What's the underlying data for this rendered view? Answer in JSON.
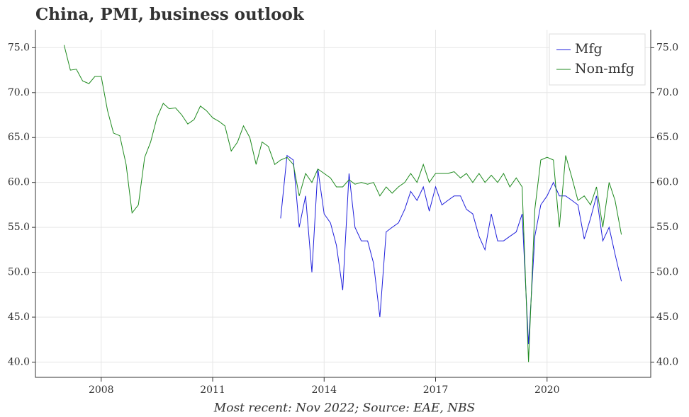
{
  "chart_data": {
    "type": "line",
    "title": "China, PMI, business outlook",
    "caption": "Most recent: Nov 2022; Source: EAE, NBS",
    "x": [
      2007.0,
      2007.17,
      2007.33,
      2007.5,
      2007.67,
      2007.83,
      2008.0,
      2008.17,
      2008.33,
      2008.5,
      2008.67,
      2008.83,
      2009.0,
      2009.17,
      2009.33,
      2009.5,
      2009.67,
      2009.83,
      2010.0,
      2010.17,
      2010.33,
      2010.5,
      2010.67,
      2010.83,
      2011.0,
      2011.17,
      2011.33,
      2011.5,
      2011.67,
      2011.83,
      2012.0,
      2012.17,
      2012.33,
      2012.5,
      2012.67,
      2012.83,
      2013.0,
      2013.17,
      2013.33,
      2013.5,
      2013.67,
      2013.83,
      2014.0,
      2014.17,
      2014.33,
      2014.5,
      2014.67,
      2014.83,
      2015.0,
      2015.17,
      2015.33,
      2015.5,
      2015.67,
      2015.83,
      2016.0,
      2016.17,
      2016.33,
      2016.5,
      2016.67,
      2016.83,
      2017.0,
      2017.17,
      2017.33,
      2017.5,
      2017.67,
      2017.83,
      2018.0,
      2018.17,
      2018.33,
      2018.5,
      2018.67,
      2018.83,
      2019.0,
      2019.17,
      2019.33,
      2019.5,
      2019.67,
      2019.83,
      2020.0,
      2020.17,
      2020.33,
      2020.5,
      2020.67,
      2020.83,
      2021.0,
      2021.17,
      2021.33,
      2021.5,
      2021.67,
      2021.83,
      2022.0
    ],
    "series": [
      {
        "name": "Mfg",
        "color": "#1f1fdc",
        "values": [
          null,
          null,
          null,
          null,
          null,
          null,
          null,
          null,
          null,
          null,
          null,
          null,
          null,
          null,
          null,
          null,
          null,
          null,
          null,
          null,
          null,
          null,
          null,
          null,
          null,
          null,
          null,
          null,
          null,
          null,
          null,
          null,
          null,
          null,
          null,
          56.0,
          63.0,
          62.5,
          55.0,
          58.5,
          50.0,
          61.5,
          56.5,
          55.5,
          53.0,
          48.0,
          61.0,
          55.0,
          53.5,
          53.5,
          51.0,
          45.0,
          54.5,
          55.0,
          55.5,
          57.0,
          59.0,
          58.0,
          59.5,
          56.8,
          59.5,
          57.5,
          58.0,
          58.5,
          58.5,
          57.0,
          56.5,
          54.0,
          52.5,
          56.5,
          53.5,
          53.5,
          54.0,
          54.5,
          56.5,
          42.0,
          54.0,
          57.5,
          58.5,
          60.0,
          58.5,
          58.5,
          58.0,
          57.5,
          53.7,
          56.0,
          58.5,
          53.5,
          55.0,
          52.0,
          49.0
        ]
      },
      {
        "name": "Non-mfg",
        "color": "#1e8a1e",
        "values": [
          75.3,
          72.5,
          72.6,
          71.3,
          71.0,
          71.8,
          71.8,
          68.0,
          65.5,
          65.2,
          62.0,
          56.6,
          57.5,
          62.8,
          64.5,
          67.2,
          68.8,
          68.2,
          68.3,
          67.5,
          66.5,
          67.0,
          68.5,
          68.0,
          67.2,
          66.8,
          66.3,
          63.5,
          64.5,
          66.3,
          65.0,
          62.0,
          64.5,
          64.0,
          62.0,
          62.5,
          62.8,
          62.0,
          58.5,
          61.0,
          60.0,
          61.5,
          61.0,
          60.5,
          59.5,
          59.5,
          60.3,
          59.8,
          60.0,
          59.8,
          60.0,
          58.5,
          59.5,
          58.8,
          59.5,
          60.0,
          61.0,
          60.0,
          62.0,
          60.0,
          61.0,
          61.0,
          61.0,
          61.2,
          60.5,
          61.0,
          60.0,
          61.0,
          60.0,
          60.8,
          60.0,
          61.0,
          59.5,
          60.5,
          59.5,
          40.0,
          57.0,
          62.5,
          62.8,
          62.5,
          55.0,
          63.0,
          60.5,
          58.0,
          58.5,
          57.5,
          59.5,
          55.0,
          60.0,
          58.0,
          54.2
        ]
      }
    ],
    "xlim": [
      2006.23,
      2022.79
    ],
    "xticks": [
      2008,
      2011,
      2014,
      2017,
      2020
    ],
    "ylim": [
      38.3,
      77.0
    ],
    "yticks": [
      {
        "value": 40,
        "label": "40.0"
      },
      {
        "value": 45,
        "label": "45.0"
      },
      {
        "value": 50,
        "label": "50.0"
      },
      {
        "value": 55,
        "label": "55.0"
      },
      {
        "value": 60,
        "label": "60.0"
      },
      {
        "value": 65,
        "label": "65.0"
      },
      {
        "value": 70,
        "label": "70.0"
      },
      {
        "value": 75,
        "label": "75.0"
      }
    ],
    "grid": true,
    "legend": "upper right"
  }
}
